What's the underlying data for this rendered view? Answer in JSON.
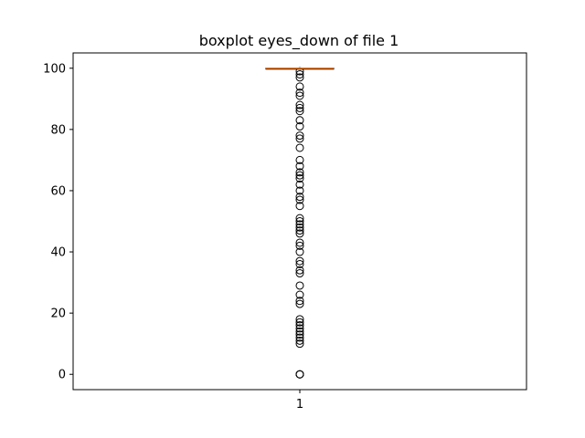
{
  "chart_data": {
    "type": "boxplot",
    "title": "boxplot eyes_down of file 1",
    "xlabel": "",
    "ylabel": "",
    "categories": [
      "1"
    ],
    "ylim": [
      -5,
      105
    ],
    "yticks": [
      0,
      20,
      40,
      60,
      80,
      100
    ],
    "grid": false,
    "box": {
      "category": "1",
      "q1": 100,
      "median": 100,
      "q3": 100,
      "whisker_low": 100,
      "whisker_high": 100
    },
    "outliers": [
      0,
      0,
      0,
      10,
      11,
      12,
      13,
      14,
      15,
      16,
      17,
      18,
      23,
      24,
      26,
      29,
      33,
      34,
      36,
      37,
      40,
      42,
      43,
      46,
      47,
      48,
      49,
      50,
      51,
      55,
      57,
      58,
      60,
      62,
      64,
      65,
      66,
      68,
      70,
      74,
      77,
      78,
      81,
      83,
      86,
      87,
      88,
      91,
      92,
      94,
      97,
      98,
      99
    ],
    "colors": {
      "median": "#ff7f0e",
      "box": "#000000",
      "outlier": "#000000"
    }
  }
}
